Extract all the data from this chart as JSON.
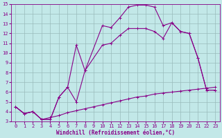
{
  "xlabel": "Windchill (Refroidissement éolien,°C)",
  "xlim": [
    -0.5,
    23.5
  ],
  "ylim": [
    3,
    15
  ],
  "xticks": [
    0,
    1,
    2,
    3,
    4,
    5,
    6,
    7,
    8,
    9,
    10,
    11,
    12,
    13,
    14,
    15,
    16,
    17,
    18,
    19,
    20,
    21,
    22,
    23
  ],
  "yticks": [
    3,
    4,
    5,
    6,
    7,
    8,
    9,
    10,
    11,
    12,
    13,
    14,
    15
  ],
  "bg_color": "#c2e8e8",
  "line_color": "#880088",
  "grid_color": "#99bbbb",
  "line1_x": [
    0,
    1,
    2,
    3,
    4,
    5,
    6,
    7,
    8,
    10,
    11,
    12,
    13,
    14,
    15,
    16,
    17,
    18,
    19,
    20,
    21,
    22,
    23
  ],
  "line1_y": [
    4.5,
    3.8,
    4.0,
    3.2,
    3.2,
    5.5,
    6.5,
    5.0,
    8.2,
    12.8,
    12.6,
    13.6,
    14.7,
    14.9,
    14.9,
    14.7,
    12.8,
    13.1,
    12.2,
    12.0,
    9.5,
    6.2,
    6.2
  ],
  "line2_x": [
    0,
    1,
    2,
    3,
    4,
    5,
    6,
    7,
    8,
    10,
    11,
    12,
    13,
    14,
    15,
    16,
    17,
    18,
    19,
    20,
    21,
    22,
    23
  ],
  "line2_y": [
    4.5,
    3.8,
    4.0,
    3.2,
    3.2,
    5.5,
    6.5,
    10.8,
    8.2,
    10.8,
    11.0,
    11.8,
    12.5,
    12.5,
    12.5,
    12.2,
    11.5,
    13.1,
    12.2,
    12.0,
    9.5,
    6.2,
    6.2
  ],
  "line3_x": [
    0,
    1,
    2,
    3,
    4,
    5,
    6,
    7,
    8,
    9,
    10,
    11,
    12,
    13,
    14,
    15,
    16,
    17,
    18,
    19,
    20,
    21,
    22,
    23
  ],
  "line3_y": [
    4.5,
    3.8,
    4.0,
    3.2,
    3.4,
    3.6,
    3.9,
    4.1,
    4.3,
    4.5,
    4.7,
    4.9,
    5.1,
    5.3,
    5.5,
    5.6,
    5.8,
    5.9,
    6.0,
    6.1,
    6.2,
    6.3,
    6.4,
    6.5
  ]
}
